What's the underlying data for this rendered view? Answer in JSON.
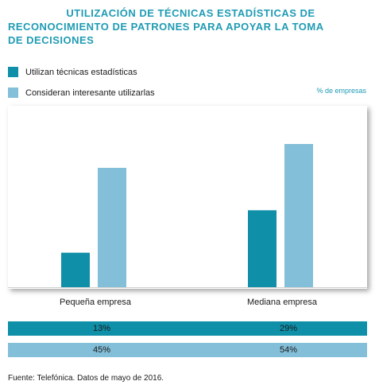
{
  "title_lines": [
    "UTILIZACIÓN DE TÉCNICAS ESTADÍSTICAS DE",
    "RECONOCIMIENTO DE PATRONES PARA APOYAR LA TOMA",
    "DE DECISIONES"
  ],
  "unit_label": "% de empresas",
  "source": "Fuente: Telefónica. Datos de mayo de 2016.",
  "colors": {
    "series1": "#0f8fa8",
    "series2": "#83bfd8",
    "title": "#1f9bb4"
  },
  "chart_data": {
    "type": "bar",
    "categories": [
      "Pequeña empresa",
      "Mediana empresa"
    ],
    "series": [
      {
        "name": "Utilizan técnicas estadísticas",
        "values": [
          13,
          29
        ],
        "labels": [
          "13%",
          "29%"
        ]
      },
      {
        "name": "Consideran interesante utilizarlas",
        "values": [
          45,
          54
        ],
        "labels": [
          "45%",
          "54%"
        ]
      }
    ],
    "ylim": [
      0,
      60
    ],
    "grid": false,
    "legend": "top-left"
  }
}
